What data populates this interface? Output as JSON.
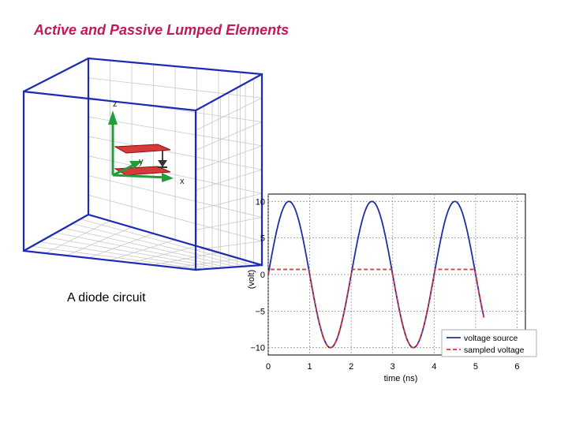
{
  "title": "Active and Passive Lumped Elements",
  "caption": "A diode circuit",
  "axes3d": {
    "z": "z",
    "y": "y",
    "x": "x"
  },
  "chart_data": {
    "type": "line",
    "xlabel": "time (ns)",
    "ylabel": "(volt)",
    "xlim": [
      0,
      6.2
    ],
    "ylim": [
      -11,
      11
    ],
    "xticks": [
      0,
      1,
      2,
      3,
      4,
      5,
      6
    ],
    "yticks": [
      10,
      5,
      0,
      -5,
      -10
    ],
    "ytick_labels": [
      "10",
      "5",
      "0",
      "−5",
      "−10"
    ],
    "grid": true,
    "legend_position": "bottom-right",
    "series": [
      {
        "name": "voltage source",
        "style": "solid",
        "color": "#1f2fa8",
        "amplitude": 10,
        "period_ns": 2,
        "x_end": 5.2
      },
      {
        "name": "sampled voltage",
        "style": "dashed",
        "color": "#e0303a",
        "amplitude": 10,
        "period_ns": 2,
        "clip_high": 0.7,
        "x_end": 5.2
      }
    ]
  }
}
